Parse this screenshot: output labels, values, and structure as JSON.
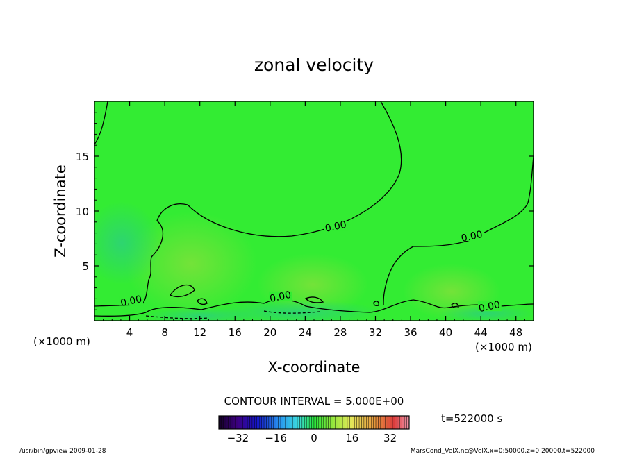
{
  "chart_data": {
    "type": "heatmap",
    "title": "zonal velocity",
    "xlabel": "X-coordinate",
    "ylabel": "Z-coordinate",
    "x_unit_left": "(×1000 m)",
    "x_unit_right": "(×1000 m)",
    "xlim": [
      0,
      50
    ],
    "ylim": [
      0,
      20
    ],
    "x_ticks": [
      4,
      8,
      12,
      16,
      20,
      24,
      28,
      32,
      36,
      40,
      44,
      48
    ],
    "y_ticks": [
      5,
      10,
      15
    ],
    "contour_interval_text": "CONTOUR INTERVAL = 5.000E+00",
    "contour_labels": [
      {
        "text": "0.00",
        "x": 27.5,
        "z": 8.5
      },
      {
        "text": "0.00",
        "x": 43.0,
        "z": 7.6
      },
      {
        "text": "0.00",
        "x": 4.2,
        "z": 1.7
      },
      {
        "text": "0.00",
        "x": 21.2,
        "z": 2.1
      },
      {
        "text": "0.00",
        "x": 45.0,
        "z": 1.2
      }
    ],
    "colorbar": {
      "min": -40,
      "max": 40,
      "ticks": [
        -32,
        -16,
        0,
        16,
        32
      ]
    },
    "time_text": "t=522000 s"
  },
  "footer": {
    "left": "/usr/bin/gpview  2009-01-28",
    "right": "MarsCond_VelX.nc@VelX,x=0:50000,z=0:20000,t=522000"
  },
  "colors": {
    "field_base": "#33ec33",
    "field_warm": "#8ce63c",
    "field_cool": "#2fd37a",
    "contour": "#000000"
  }
}
